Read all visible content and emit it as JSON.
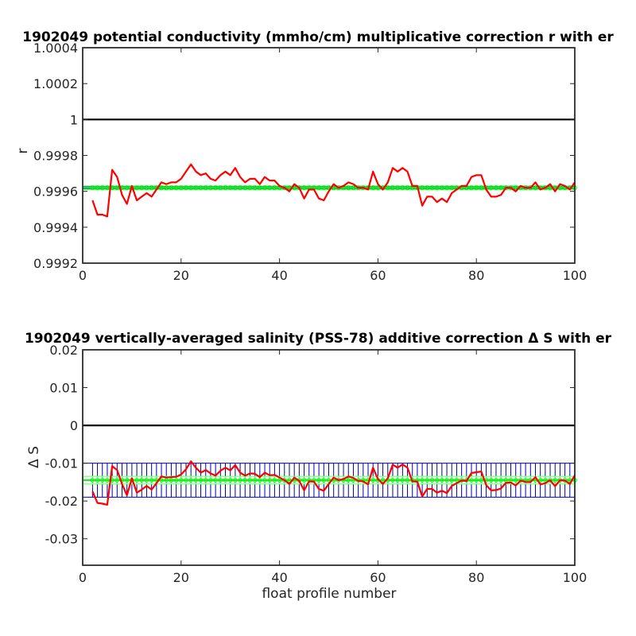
{
  "chart_data": [
    {
      "type": "line",
      "title": "1902049 potential conductivity (mmho/cm) multiplicative correction r with er",
      "xlabel": "",
      "ylabel": "r",
      "xlim": [
        0,
        100
      ],
      "ylim": [
        0.9992,
        1.0004
      ],
      "x_ticks": [
        "0",
        "20",
        "40",
        "60",
        "80",
        "100"
      ],
      "y_ticks": [
        "0.9992",
        "0.9994",
        "0.9996",
        "0.9998",
        "1",
        "1.0002",
        "1.0004"
      ],
      "reference_line": 1,
      "colors": {
        "series": "#ff0000",
        "fit": "#00ff00",
        "fit_error": "#7fff7f",
        "error_bars": "#0000aa",
        "reference": "#000000"
      },
      "series": [
        {
          "x": [
            2,
            3,
            4,
            5,
            6,
            7,
            8,
            9,
            10,
            11,
            12,
            13,
            14,
            15,
            16,
            17,
            18,
            19,
            20,
            21,
            22,
            23,
            24,
            25,
            26,
            27,
            28,
            29,
            30,
            31,
            32,
            33,
            34,
            35,
            36,
            37,
            38,
            39,
            40,
            41,
            42,
            43,
            44,
            45,
            46,
            47,
            48,
            49,
            50,
            51,
            52,
            53,
            54,
            55,
            56,
            57,
            58,
            59,
            60,
            61,
            62,
            63,
            64,
            65,
            66,
            67,
            68,
            69,
            70,
            71,
            72,
            73,
            74,
            75,
            76,
            77,
            78,
            79,
            80,
            81,
            82,
            83,
            84,
            85,
            86,
            87,
            88,
            89,
            90,
            91,
            92,
            93,
            94,
            95,
            96,
            97,
            98,
            99,
            100
          ],
          "y": [
            0.99955,
            0.99947,
            0.99947,
            0.99946,
            0.99972,
            0.99968,
            0.99958,
            0.99953,
            0.99963,
            0.99955,
            0.99957,
            0.99959,
            0.99957,
            0.99961,
            0.99965,
            0.99964,
            0.99965,
            0.99965,
            0.99967,
            0.99971,
            0.99975,
            0.99971,
            0.99969,
            0.9997,
            0.99967,
            0.99966,
            0.99969,
            0.99971,
            0.99969,
            0.99973,
            0.99968,
            0.99965,
            0.99967,
            0.99967,
            0.99964,
            0.99968,
            0.99966,
            0.99966,
            0.99963,
            0.99962,
            0.9996,
            0.99964,
            0.99962,
            0.99956,
            0.99961,
            0.99961,
            0.99956,
            0.99955,
            0.9996,
            0.99964,
            0.99962,
            0.99963,
            0.99965,
            0.99964,
            0.99962,
            0.99962,
            0.99961,
            0.99971,
            0.99964,
            0.99961,
            0.99965,
            0.99973,
            0.99971,
            0.99973,
            0.99971,
            0.99963,
            0.99963,
            0.99952,
            0.99957,
            0.99957,
            0.99954,
            0.99956,
            0.99954,
            0.99959,
            0.99961,
            0.99963,
            0.99963,
            0.99968,
            0.99969,
            0.99969,
            0.99961,
            0.99957,
            0.99957,
            0.99958,
            0.99962,
            0.99962,
            0.9996,
            0.99963,
            0.99962,
            0.99962,
            0.99965,
            0.99961,
            0.99962,
            0.99964,
            0.9996,
            0.99964,
            0.99963,
            0.99961,
            0.99965
          ]
        }
      ],
      "fit": {
        "value": 0.99962,
        "error_bar_halfwidth": 5e-06,
        "series_error_halfwidth": 1.1e-05
      }
    },
    {
      "type": "line",
      "title": "1902049 vertically-averaged salinity (PSS-78) additive correction Δ S with er",
      "xlabel": "float profile number",
      "ylabel": "Δ S",
      "xlim": [
        0,
        100
      ],
      "ylim": [
        -0.037,
        0.02
      ],
      "x_ticks": [
        "0",
        "20",
        "40",
        "60",
        "80",
        "100"
      ],
      "y_ticks": [
        "-0.03",
        "-0.02",
        "-0.01",
        "0",
        "0.01",
        "0.02"
      ],
      "reference_line": 0,
      "colors": {
        "series": "#ff0000",
        "fit": "#00ff00",
        "fit_error": "#7fff7f",
        "error_bars": "#0000aa",
        "reference": "#000000"
      },
      "series": [
        {
          "x": [
            2,
            3,
            4,
            5,
            6,
            7,
            8,
            9,
            10,
            11,
            12,
            13,
            14,
            15,
            16,
            17,
            18,
            19,
            20,
            21,
            22,
            23,
            24,
            25,
            26,
            27,
            28,
            29,
            30,
            31,
            32,
            33,
            34,
            35,
            36,
            37,
            38,
            39,
            40,
            41,
            42,
            43,
            44,
            45,
            46,
            47,
            48,
            49,
            50,
            51,
            52,
            53,
            54,
            55,
            56,
            57,
            58,
            59,
            60,
            61,
            62,
            63,
            64,
            65,
            66,
            67,
            68,
            69,
            70,
            71,
            72,
            73,
            74,
            75,
            76,
            77,
            78,
            79,
            80,
            81,
            82,
            83,
            84,
            85,
            86,
            87,
            88,
            89,
            90,
            91,
            92,
            93,
            94,
            95,
            96,
            97,
            98,
            99,
            100
          ],
          "y": [
            -0.0175,
            -0.0205,
            -0.0207,
            -0.021,
            -0.0108,
            -0.0118,
            -0.0155,
            -0.0185,
            -0.014,
            -0.0178,
            -0.017,
            -0.016,
            -0.017,
            -0.0153,
            -0.0135,
            -0.0138,
            -0.0137,
            -0.0136,
            -0.013,
            -0.0116,
            -0.0095,
            -0.0112,
            -0.0125,
            -0.0118,
            -0.0127,
            -0.0133,
            -0.012,
            -0.0112,
            -0.0119,
            -0.0105,
            -0.0125,
            -0.0133,
            -0.0127,
            -0.0128,
            -0.0137,
            -0.0125,
            -0.0132,
            -0.0131,
            -0.0138,
            -0.0145,
            -0.0155,
            -0.0138,
            -0.0147,
            -0.0172,
            -0.0148,
            -0.0149,
            -0.0168,
            -0.0173,
            -0.0155,
            -0.0138,
            -0.0145,
            -0.0142,
            -0.0135,
            -0.0139,
            -0.0147,
            -0.0148,
            -0.0156,
            -0.0112,
            -0.0142,
            -0.0155,
            -0.014,
            -0.0104,
            -0.0112,
            -0.0103,
            -0.0112,
            -0.0148,
            -0.0149,
            -0.0188,
            -0.0168,
            -0.0168,
            -0.0178,
            -0.0173,
            -0.0179,
            -0.016,
            -0.0153,
            -0.0146,
            -0.0147,
            -0.0126,
            -0.0124,
            -0.0122,
            -0.0158,
            -0.0172,
            -0.0171,
            -0.0167,
            -0.0152,
            -0.0151,
            -0.0159,
            -0.0146,
            -0.015,
            -0.015,
            -0.0137,
            -0.0156,
            -0.0153,
            -0.0145,
            -0.0161,
            -0.0145,
            -0.0146,
            -0.0155,
            -0.0132
          ]
        }
      ],
      "fit": {
        "value": -0.0145,
        "error_bar_halfwidth": 0.0045,
        "series_error_halfwidth": 0.001
      }
    }
  ]
}
